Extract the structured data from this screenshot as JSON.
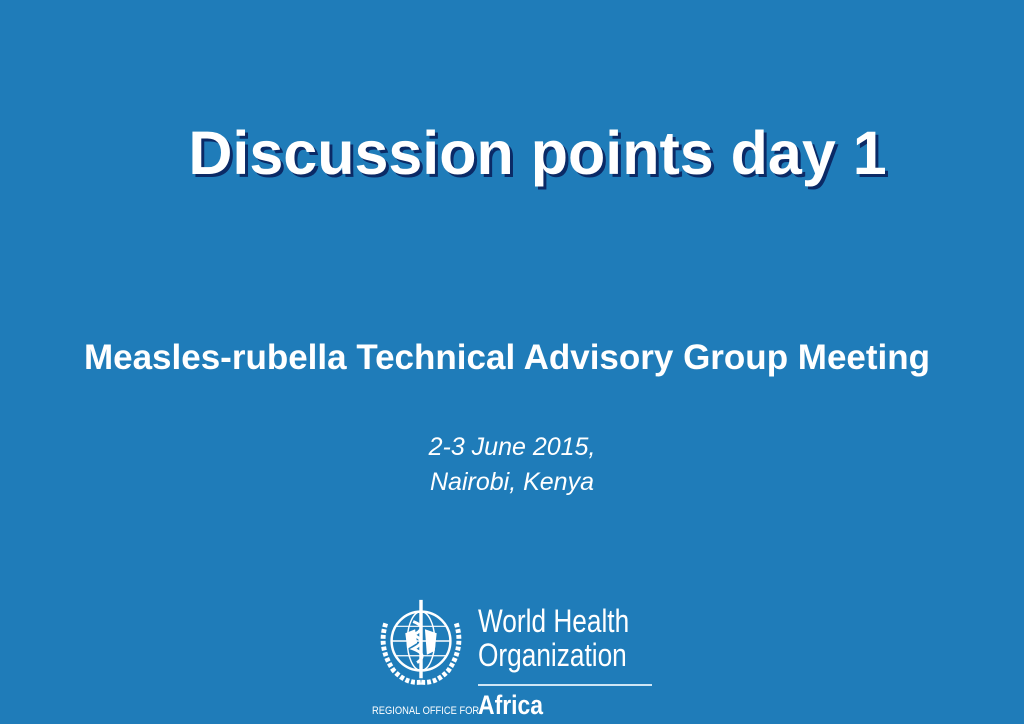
{
  "slide": {
    "title": "Discussion points day 1",
    "subtitle": "Measles-rubella Technical Advisory Group Meeting",
    "date_line": "2-3 June 2015,",
    "location_line": "Nairobi, Kenya"
  },
  "logo": {
    "org_line1": "World Health",
    "org_line2": "Organization",
    "region_prefix": "REGIONAL OFFICE FOR",
    "region": "Africa",
    "icon": "who-emblem-icon"
  },
  "colors": {
    "background": "#1f7cb9",
    "title_shadow": "#0b2a66",
    "text": "#ffffff"
  }
}
